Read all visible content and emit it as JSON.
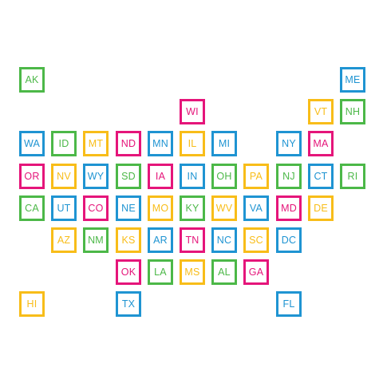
{
  "colors": {
    "blue": "#1f94d2",
    "green": "#4cb848",
    "yellow": "#f8bd19",
    "magenta": "#e5157a"
  },
  "tiles": [
    {
      "abbr": "AK",
      "color": "green",
      "col": 0,
      "row": 0
    },
    {
      "abbr": "ME",
      "color": "blue",
      "col": 10,
      "row": 0
    },
    {
      "abbr": "WI",
      "color": "magenta",
      "col": 5,
      "row": 1
    },
    {
      "abbr": "VT",
      "color": "yellow",
      "col": 9,
      "row": 1
    },
    {
      "abbr": "NH",
      "color": "green",
      "col": 10,
      "row": 1
    },
    {
      "abbr": "WA",
      "color": "blue",
      "col": 0,
      "row": 2
    },
    {
      "abbr": "ID",
      "color": "green",
      "col": 1,
      "row": 2
    },
    {
      "abbr": "MT",
      "color": "yellow",
      "col": 2,
      "row": 2
    },
    {
      "abbr": "ND",
      "color": "magenta",
      "col": 3,
      "row": 2
    },
    {
      "abbr": "MN",
      "color": "blue",
      "col": 4,
      "row": 2
    },
    {
      "abbr": "IL",
      "color": "yellow",
      "col": 5,
      "row": 2
    },
    {
      "abbr": "MI",
      "color": "blue",
      "col": 6,
      "row": 2
    },
    {
      "abbr": "NY",
      "color": "blue",
      "col": 8,
      "row": 2
    },
    {
      "abbr": "MA",
      "color": "magenta",
      "col": 9,
      "row": 2
    },
    {
      "abbr": "OR",
      "color": "magenta",
      "col": 0,
      "row": 3
    },
    {
      "abbr": "NV",
      "color": "yellow",
      "col": 1,
      "row": 3
    },
    {
      "abbr": "WY",
      "color": "blue",
      "col": 2,
      "row": 3
    },
    {
      "abbr": "SD",
      "color": "green",
      "col": 3,
      "row": 3
    },
    {
      "abbr": "IA",
      "color": "magenta",
      "col": 4,
      "row": 3
    },
    {
      "abbr": "IN",
      "color": "blue",
      "col": 5,
      "row": 3
    },
    {
      "abbr": "OH",
      "color": "green",
      "col": 6,
      "row": 3
    },
    {
      "abbr": "PA",
      "color": "yellow",
      "col": 7,
      "row": 3
    },
    {
      "abbr": "NJ",
      "color": "green",
      "col": 8,
      "row": 3
    },
    {
      "abbr": "CT",
      "color": "blue",
      "col": 9,
      "row": 3
    },
    {
      "abbr": "RI",
      "color": "green",
      "col": 10,
      "row": 3
    },
    {
      "abbr": "CA",
      "color": "green",
      "col": 0,
      "row": 4
    },
    {
      "abbr": "UT",
      "color": "blue",
      "col": 1,
      "row": 4
    },
    {
      "abbr": "CO",
      "color": "magenta",
      "col": 2,
      "row": 4
    },
    {
      "abbr": "NE",
      "color": "blue",
      "col": 3,
      "row": 4
    },
    {
      "abbr": "MO",
      "color": "yellow",
      "col": 4,
      "row": 4
    },
    {
      "abbr": "KY",
      "color": "green",
      "col": 5,
      "row": 4
    },
    {
      "abbr": "WV",
      "color": "yellow",
      "col": 6,
      "row": 4
    },
    {
      "abbr": "VA",
      "color": "blue",
      "col": 7,
      "row": 4
    },
    {
      "abbr": "MD",
      "color": "magenta",
      "col": 8,
      "row": 4
    },
    {
      "abbr": "DE",
      "color": "yellow",
      "col": 9,
      "row": 4
    },
    {
      "abbr": "AZ",
      "color": "yellow",
      "col": 1,
      "row": 5
    },
    {
      "abbr": "NM",
      "color": "green",
      "col": 2,
      "row": 5
    },
    {
      "abbr": "KS",
      "color": "yellow",
      "col": 3,
      "row": 5
    },
    {
      "abbr": "AR",
      "color": "blue",
      "col": 4,
      "row": 5
    },
    {
      "abbr": "TN",
      "color": "magenta",
      "col": 5,
      "row": 5
    },
    {
      "abbr": "NC",
      "color": "blue",
      "col": 6,
      "row": 5
    },
    {
      "abbr": "SC",
      "color": "yellow",
      "col": 7,
      "row": 5
    },
    {
      "abbr": "DC",
      "color": "blue",
      "col": 8,
      "row": 5
    },
    {
      "abbr": "OK",
      "color": "magenta",
      "col": 3,
      "row": 6
    },
    {
      "abbr": "LA",
      "color": "green",
      "col": 4,
      "row": 6
    },
    {
      "abbr": "MS",
      "color": "yellow",
      "col": 5,
      "row": 6
    },
    {
      "abbr": "AL",
      "color": "green",
      "col": 6,
      "row": 6
    },
    {
      "abbr": "GA",
      "color": "magenta",
      "col": 7,
      "row": 6
    },
    {
      "abbr": "HI",
      "color": "yellow",
      "col": 0,
      "row": 7
    },
    {
      "abbr": "TX",
      "color": "blue",
      "col": 3,
      "row": 7
    },
    {
      "abbr": "FL",
      "color": "blue",
      "col": 8,
      "row": 7
    }
  ]
}
